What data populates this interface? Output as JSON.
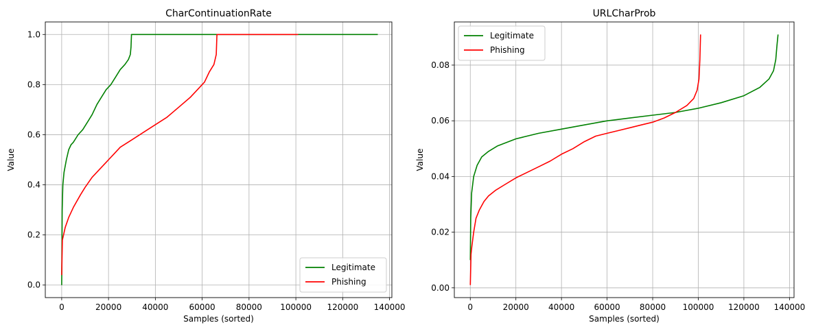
{
  "chart_data": [
    {
      "type": "line",
      "title": "CharContinuationRate",
      "xlabel": "Samples (sorted)",
      "ylabel": "Value",
      "xlim": [
        -7000,
        141000
      ],
      "ylim": [
        -0.05,
        1.05
      ],
      "xticks": [
        0,
        20000,
        40000,
        60000,
        80000,
        100000,
        120000,
        140000
      ],
      "xtick_labels": [
        "0",
        "20000",
        "40000",
        "60000",
        "80000",
        "100000",
        "120000",
        "140000"
      ],
      "yticks": [
        0.0,
        0.2,
        0.4,
        0.6,
        0.8,
        1.0
      ],
      "ytick_labels": [
        "0.0",
        "0.2",
        "0.4",
        "0.6",
        "0.8",
        "1.0"
      ],
      "grid": true,
      "legend_position": "lower-right",
      "series": [
        {
          "name": "Legitimate",
          "color": "#008000",
          "x": [
            0,
            200,
            500,
            1000,
            2000,
            3000,
            4000,
            5000,
            7000,
            9000,
            11000,
            13000,
            15000,
            17000,
            19000,
            21000,
            23000,
            25000,
            27000,
            28500,
            29300,
            29600,
            29800,
            30000,
            60000,
            100000,
            135000
          ],
          "y": [
            0.0,
            0.3,
            0.4,
            0.45,
            0.5,
            0.54,
            0.56,
            0.57,
            0.6,
            0.62,
            0.65,
            0.68,
            0.72,
            0.75,
            0.78,
            0.8,
            0.83,
            0.86,
            0.88,
            0.9,
            0.92,
            0.95,
            1.0,
            1.0,
            1.0,
            1.0,
            1.0
          ]
        },
        {
          "name": "Phishing",
          "color": "#ff0000",
          "x": [
            0,
            300,
            800,
            1500,
            3000,
            5000,
            8000,
            10000,
            13000,
            16000,
            19000,
            20000,
            22000,
            25000,
            30000,
            35000,
            40000,
            45000,
            50000,
            55000,
            58000,
            61000,
            63000,
            65000,
            66000,
            66300,
            80000,
            100000,
            101000
          ],
          "y": [
            0.04,
            0.18,
            0.2,
            0.23,
            0.27,
            0.31,
            0.36,
            0.39,
            0.43,
            0.46,
            0.49,
            0.5,
            0.52,
            0.55,
            0.58,
            0.61,
            0.64,
            0.67,
            0.71,
            0.75,
            0.78,
            0.81,
            0.85,
            0.88,
            0.92,
            1.0,
            1.0,
            1.0,
            1.0
          ]
        }
      ]
    },
    {
      "type": "line",
      "title": "URLCharProb",
      "xlabel": "Samples (sorted)",
      "ylabel": "Value",
      "xlim": [
        -7000,
        142000
      ],
      "ylim": [
        -0.0035,
        0.0955
      ],
      "xticks": [
        0,
        20000,
        40000,
        60000,
        80000,
        100000,
        120000,
        140000
      ],
      "xtick_labels": [
        "0",
        "20000",
        "40000",
        "60000",
        "80000",
        "100000",
        "120000",
        "140000"
      ],
      "yticks": [
        0.0,
        0.02,
        0.04,
        0.06,
        0.08
      ],
      "ytick_labels": [
        "0.00",
        "0.02",
        "0.04",
        "0.06",
        "0.08"
      ],
      "grid": true,
      "legend_position": "top-left",
      "series": [
        {
          "name": "Legitimate",
          "color": "#008000",
          "x": [
            0,
            200,
            600,
            1500,
            3000,
            5000,
            8000,
            12000,
            20000,
            30000,
            40000,
            50000,
            60000,
            70000,
            80000,
            90000,
            100000,
            110000,
            120000,
            127000,
            131000,
            133000,
            134000,
            134500,
            135000
          ],
          "y": [
            0.01,
            0.025,
            0.034,
            0.04,
            0.044,
            0.047,
            0.049,
            0.051,
            0.0535,
            0.0555,
            0.057,
            0.0585,
            0.06,
            0.061,
            0.062,
            0.063,
            0.0645,
            0.0665,
            0.069,
            0.072,
            0.075,
            0.078,
            0.082,
            0.087,
            0.091
          ]
        },
        {
          "name": "Phishing",
          "color": "#ff0000",
          "x": [
            0,
            300,
            700,
            1500,
            2500,
            4000,
            6000,
            8000,
            11000,
            15000,
            20000,
            25000,
            30000,
            35000,
            40000,
            45000,
            50000,
            55000,
            60000,
            65000,
            70000,
            75000,
            80000,
            85000,
            90000,
            95000,
            98000,
            99500,
            100300,
            100700,
            101000
          ],
          "y": [
            0.001,
            0.012,
            0.015,
            0.02,
            0.025,
            0.028,
            0.031,
            0.033,
            0.035,
            0.037,
            0.0395,
            0.0415,
            0.0435,
            0.0455,
            0.048,
            0.05,
            0.0525,
            0.0545,
            0.0555,
            0.0565,
            0.0575,
            0.0585,
            0.0595,
            0.061,
            0.063,
            0.0655,
            0.068,
            0.071,
            0.075,
            0.082,
            0.091
          ]
        }
      ]
    }
  ]
}
